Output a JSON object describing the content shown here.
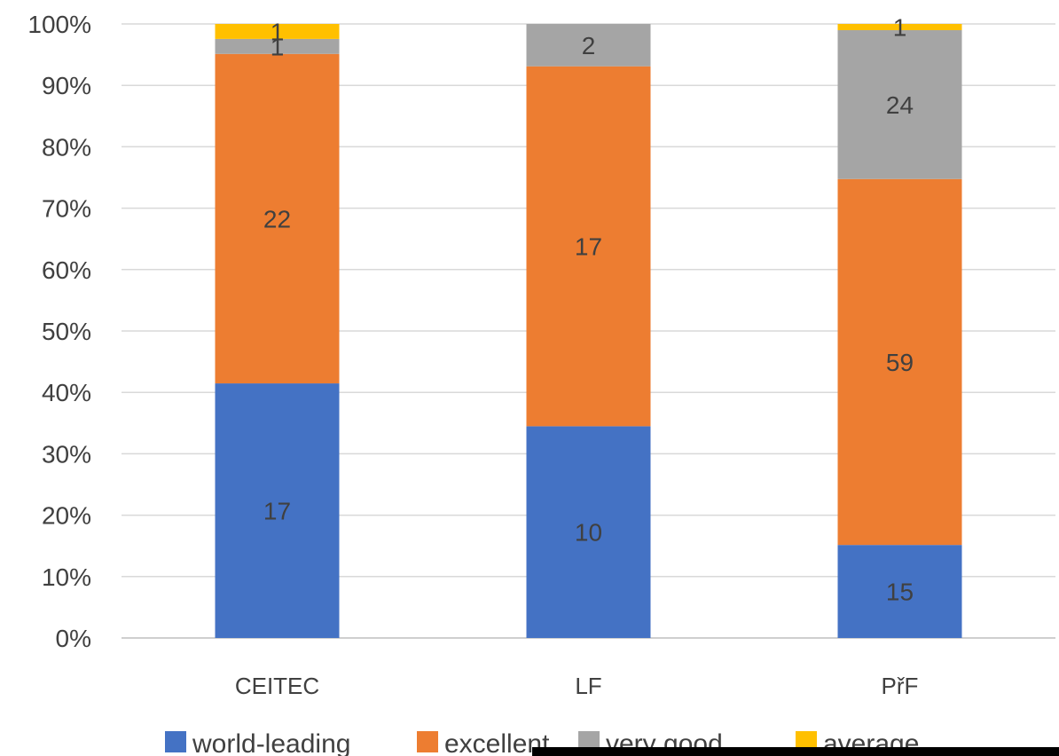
{
  "chart_data": {
    "type": "bar",
    "stacked": "percent",
    "categories": [
      "CEITEC",
      "LF",
      "PřF"
    ],
    "series": [
      {
        "name": "world-leading",
        "color": "#4472C4",
        "values": [
          17,
          10,
          15
        ]
      },
      {
        "name": "excellent",
        "color": "#ED7D31",
        "values": [
          22,
          17,
          59
        ]
      },
      {
        "name": "very good",
        "color": "#A5A5A5",
        "values": [
          1,
          2,
          24
        ]
      },
      {
        "name": "average",
        "color": "#FFC000",
        "values": [
          1,
          0,
          1
        ]
      }
    ],
    "y_ticks": [
      "0%",
      "10%",
      "20%",
      "30%",
      "40%",
      "50%",
      "60%",
      "70%",
      "80%",
      "90%",
      "100%"
    ],
    "ylim": [
      0,
      100
    ],
    "grid": true,
    "legend_position": "bottom"
  }
}
